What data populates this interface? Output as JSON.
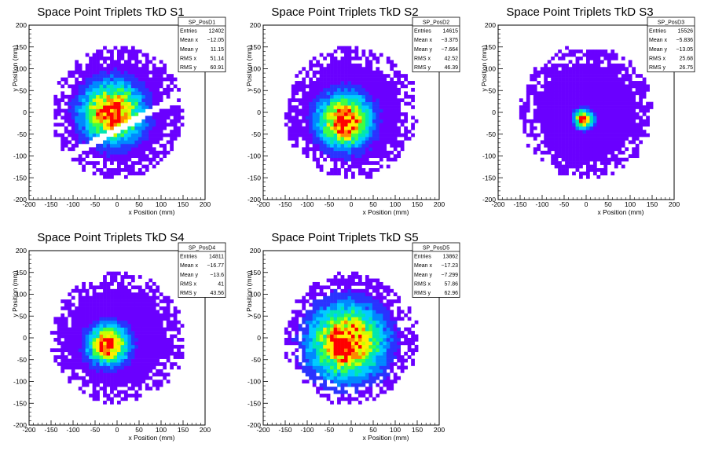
{
  "chart_data": [
    {
      "type": "heatmap",
      "title": "Space Point Triplets TkD S1",
      "xlabel": "x Position (mm)",
      "ylabel": "y Position (mm)",
      "xlim": [
        -200,
        200
      ],
      "ylim": [
        -200,
        200
      ],
      "xticks": [
        -200,
        -150,
        -100,
        -50,
        0,
        50,
        100,
        150,
        200
      ],
      "yticks": [
        -200,
        -150,
        -100,
        -50,
        0,
        50,
        100,
        150,
        200
      ],
      "stats": {
        "name": "SP_PosD1",
        "rows": [
          [
            "Entries",
            "12402"
          ],
          [
            "Mean x",
            "−12.05"
          ],
          [
            "Mean y",
            "11.15"
          ],
          [
            "RMS x",
            "51.14"
          ],
          [
            "RMS y",
            "60.91"
          ]
        ]
      },
      "distribution": {
        "center_x": -10,
        "center_y": 0,
        "spread": 45,
        "radius": 150,
        "gap": true
      }
    },
    {
      "type": "heatmap",
      "title": "Space Point Triplets TkD S2",
      "xlabel": "x Position (mm)",
      "ylabel": "y Position (mm)",
      "xlim": [
        -200,
        200
      ],
      "ylim": [
        -200,
        200
      ],
      "xticks": [
        -200,
        -150,
        -100,
        -50,
        0,
        50,
        100,
        150,
        200
      ],
      "yticks": [
        -200,
        -150,
        -100,
        -50,
        0,
        50,
        100,
        150,
        200
      ],
      "stats": {
        "name": "SP_PosD2",
        "rows": [
          [
            "Entries",
            "14615"
          ],
          [
            "Mean x",
            "−3.375"
          ],
          [
            "Mean y",
            "−7.664"
          ],
          [
            "RMS x",
            "42.52"
          ],
          [
            "RMS y",
            "46.39"
          ]
        ]
      },
      "distribution": {
        "center_x": -15,
        "center_y": -20,
        "spread": 40,
        "radius": 150,
        "gap": false
      }
    },
    {
      "type": "heatmap",
      "title": "Space Point Triplets TkD S3",
      "xlabel": "x Position (mm)",
      "ylabel": "y Position (mm)",
      "xlim": [
        -200,
        200
      ],
      "ylim": [
        -200,
        200
      ],
      "xticks": [
        -200,
        -150,
        -100,
        -50,
        0,
        50,
        100,
        150,
        200
      ],
      "yticks": [
        -200,
        -150,
        -100,
        -50,
        0,
        50,
        100,
        150,
        200
      ],
      "stats": {
        "name": "SP_PosD3",
        "rows": [
          [
            "Entries",
            "15526"
          ],
          [
            "Mean x",
            "−5.836"
          ],
          [
            "Mean y",
            "−13.05"
          ],
          [
            "RMS x",
            "25.68"
          ],
          [
            "RMS y",
            "26.75"
          ]
        ]
      },
      "distribution": {
        "center_x": -5,
        "center_y": -15,
        "spread": 14,
        "radius": 150,
        "gap": false
      }
    },
    {
      "type": "heatmap",
      "title": "Space Point Triplets TkD S4",
      "xlabel": "x Position (mm)",
      "ylabel": "y Position (mm)",
      "xlim": [
        -200,
        200
      ],
      "ylim": [
        -200,
        200
      ],
      "xticks": [
        -200,
        -150,
        -100,
        -50,
        0,
        50,
        100,
        150,
        200
      ],
      "yticks": [
        -200,
        -150,
        -100,
        -50,
        0,
        50,
        100,
        150,
        200
      ],
      "stats": {
        "name": "SP_PosD4",
        "rows": [
          [
            "Entries",
            "14811"
          ],
          [
            "Mean x",
            "−16.77"
          ],
          [
            "Mean y",
            "−13.6"
          ],
          [
            "RMS x",
            "41"
          ],
          [
            "RMS y",
            "43.56"
          ]
        ]
      },
      "distribution": {
        "center_x": -20,
        "center_y": -15,
        "spread": 30,
        "radius": 150,
        "gap": false
      }
    },
    {
      "type": "heatmap",
      "title": "Space Point Triplets TkD S5",
      "xlabel": "x Position (mm)",
      "ylabel": "y Position (mm)",
      "xlim": [
        -200,
        200
      ],
      "ylim": [
        -200,
        200
      ],
      "xticks": [
        -200,
        -150,
        -100,
        -50,
        0,
        50,
        100,
        150,
        200
      ],
      "yticks": [
        -200,
        -150,
        -100,
        -50,
        0,
        50,
        100,
        150,
        200
      ],
      "stats": {
        "name": "SP_PosD5",
        "rows": [
          [
            "Entries",
            "13862"
          ],
          [
            "Mean x",
            "−17.23"
          ],
          [
            "Mean y",
            "−7.299"
          ],
          [
            "RMS x",
            "57.86"
          ],
          [
            "RMS y",
            "62.96"
          ]
        ]
      },
      "distribution": {
        "center_x": -10,
        "center_y": -10,
        "spread": 55,
        "radius": 150,
        "gap": false
      }
    }
  ],
  "colors": {
    "palette": [
      "#6a00ff",
      "#2a33ff",
      "#0088ff",
      "#00ccff",
      "#00e6b0",
      "#40ff40",
      "#c8ff00",
      "#ffee00",
      "#ff8800",
      "#ff0000"
    ],
    "axis": "#000000"
  }
}
